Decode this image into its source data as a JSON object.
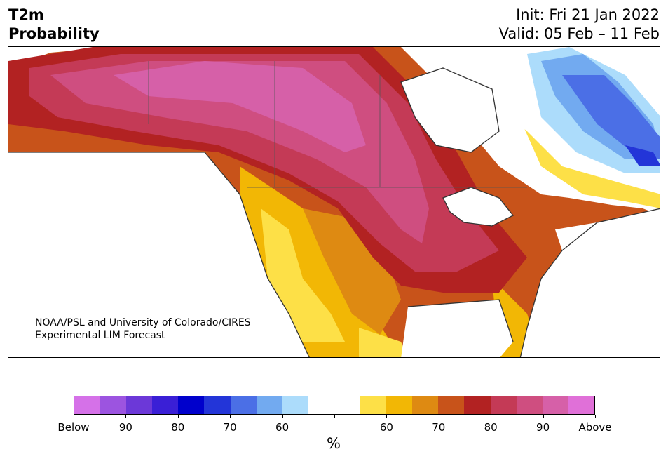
{
  "header": {
    "variable": "T2m",
    "product": "Probability",
    "init": "Init: Fri 21 Jan 2022",
    "valid": "Valid: 05 Feb – 11 Feb"
  },
  "credit": {
    "line1": "NOAA/PSL and University of Colorado/CIRES",
    "line2": "Experimental LIM Forecast"
  },
  "colorbar": {
    "units": "%",
    "colors": [
      "#d571e8",
      "#9c54e0",
      "#6c38d8",
      "#3a1fd6",
      "#0000cc",
      "#2335d8",
      "#4b6fe6",
      "#72aaf0",
      "#acdcfb",
      "#ffffff",
      "#ffffff",
      "#fde047",
      "#f2b705",
      "#de8a12",
      "#c8531a",
      "#b22222",
      "#c43a56",
      "#cf4e80",
      "#d660a8",
      "#e070d8"
    ],
    "labels": [
      "Below",
      "90",
      "80",
      "70",
      "60",
      "60",
      "70",
      "80",
      "90",
      "Above"
    ]
  }
}
